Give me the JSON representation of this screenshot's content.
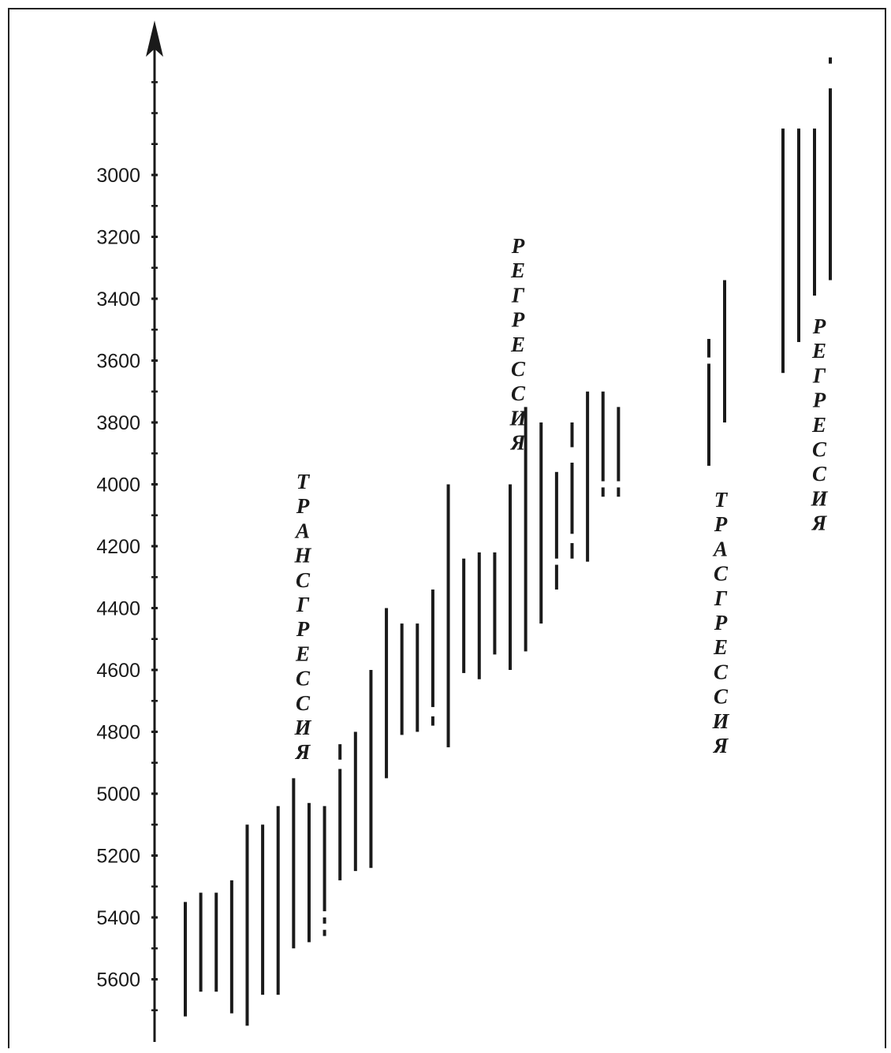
{
  "chart_data": {
    "type": "range-bar",
    "y_axis": {
      "inverted": true,
      "ticks": [
        "3000",
        "3200",
        "3400",
        "3600",
        "3800",
        "4000",
        "4200",
        "4400",
        "4600",
        "4800",
        "5000",
        "5200",
        "5400",
        "5600"
      ],
      "tick_values": [
        3000,
        3200,
        3400,
        3600,
        3800,
        4000,
        4200,
        4400,
        4600,
        4800,
        5000,
        5200,
        5400,
        5600
      ],
      "range": [
        2520,
        5820
      ],
      "minor_step": 100
    },
    "bars": [
      {
        "segments": [
          [
            5350,
            5720
          ]
        ]
      },
      {
        "segments": [
          [
            5320,
            5640
          ]
        ]
      },
      {
        "segments": [
          [
            5320,
            5640
          ]
        ]
      },
      {
        "segments": [
          [
            5280,
            5710
          ]
        ]
      },
      {
        "segments": [
          [
            5100,
            5750
          ]
        ]
      },
      {
        "segments": [
          [
            5100,
            5650
          ]
        ]
      },
      {
        "segments": [
          [
            5040,
            5650
          ]
        ]
      },
      {
        "segments": [
          [
            4950,
            5500
          ]
        ]
      },
      {
        "segments": [
          [
            5030,
            5480
          ]
        ]
      },
      {
        "segments": [
          [
            5040,
            5380
          ],
          [
            5400,
            5420
          ],
          [
            5440,
            5460
          ]
        ]
      },
      {
        "segments": [
          [
            4840,
            4890
          ],
          [
            4920,
            5280
          ]
        ]
      },
      {
        "segments": [
          [
            4800,
            5250
          ]
        ]
      },
      {
        "segments": [
          [
            4600,
            5240
          ]
        ]
      },
      {
        "segments": [
          [
            4400,
            4950
          ]
        ]
      },
      {
        "segments": [
          [
            4450,
            4810
          ]
        ]
      },
      {
        "segments": [
          [
            4450,
            4800
          ]
        ]
      },
      {
        "segments": [
          [
            4340,
            4720
          ],
          [
            4750,
            4780
          ]
        ]
      },
      {
        "segments": [
          [
            4000,
            4850
          ]
        ]
      },
      {
        "segments": [
          [
            4240,
            4610
          ]
        ]
      },
      {
        "segments": [
          [
            4220,
            4630
          ]
        ]
      },
      {
        "segments": [
          [
            4220,
            4550
          ]
        ]
      },
      {
        "segments": [
          [
            4000,
            4600
          ]
        ]
      },
      {
        "segments": [
          [
            3750,
            4540
          ]
        ]
      },
      {
        "segments": [
          [
            3800,
            4450
          ]
        ]
      },
      {
        "segments": [
          [
            3960,
            4240
          ],
          [
            4260,
            4340
          ]
        ]
      },
      {
        "segments": [
          [
            3800,
            3880
          ],
          [
            3930,
            4160
          ],
          [
            4190,
            4240
          ]
        ]
      },
      {
        "segments": [
          [
            3700,
            4250
          ]
        ]
      },
      {
        "segments": [
          [
            3700,
            3990
          ],
          [
            4010,
            4040
          ]
        ]
      },
      {
        "segments": [
          [
            3750,
            3990
          ],
          [
            4010,
            4040
          ]
        ]
      },
      {
        "segments": [
          [
            3530,
            3590
          ],
          [
            3610,
            3940
          ]
        ]
      },
      {
        "segments": [
          [
            3340,
            3800
          ]
        ]
      },
      {
        "segments": [
          [
            2850,
            3640
          ]
        ]
      },
      {
        "segments": [
          [
            2850,
            3540
          ]
        ]
      },
      {
        "segments": [
          [
            2850,
            3390
          ]
        ]
      },
      {
        "segments": [
          [
            2620,
            2640
          ],
          [
            2720,
            3340
          ]
        ]
      }
    ],
    "labels": [
      {
        "text": "ТРАНСГРЕССИЯ",
        "letters": [
          "Т",
          "Р",
          "А",
          "Н",
          "С",
          "Г",
          "Р",
          "Е",
          "С",
          "С",
          "И",
          "Я"
        ]
      },
      {
        "text": "РЕГРЕССИЯ",
        "letters": [
          "Р",
          "Е",
          "Г",
          "Р",
          "Е",
          "С",
          "С",
          "И",
          "Я"
        ]
      },
      {
        "text": "ТРАСГРЕССИЯ",
        "letters": [
          "Т",
          "Р",
          "А",
          "С",
          "Г",
          "Р",
          "Е",
          "С",
          "С",
          "И",
          "Я"
        ]
      },
      {
        "text": "РЕГРЕССИЯ",
        "letters": [
          "Р",
          "Е",
          "Г",
          "Р",
          "Е",
          "С",
          "С",
          "И",
          "Я"
        ]
      }
    ],
    "colors": {
      "ink": "#1a1a1a",
      "background": "#ffffff"
    }
  }
}
